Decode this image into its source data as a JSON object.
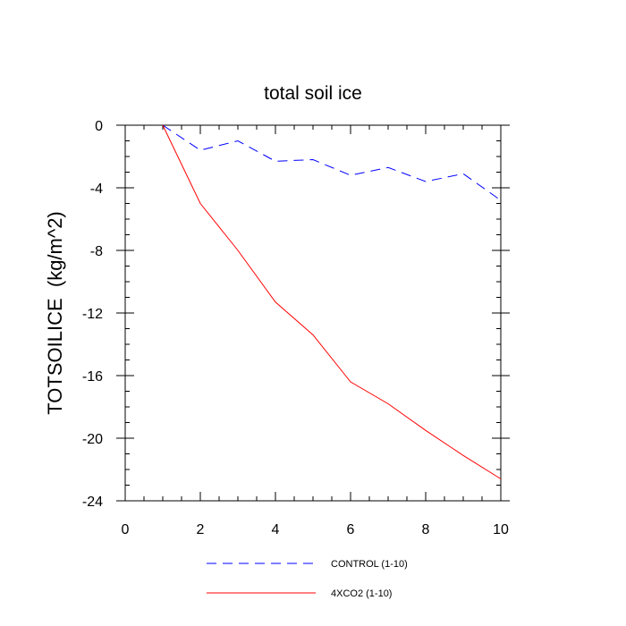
{
  "chart_data": {
    "type": "line",
    "title": "total soil ice",
    "xlabel": "",
    "ylabel": "TOTSOILICE  (kg/m^2)",
    "xlim": [
      0,
      10
    ],
    "ylim": [
      -24,
      0
    ],
    "xticks": [
      0,
      2,
      4,
      6,
      8,
      10
    ],
    "yticks": [
      0,
      -4,
      -8,
      -12,
      -16,
      -20,
      -24
    ],
    "xtick_labels": [
      "0",
      "2",
      "4",
      "6",
      "8",
      "10"
    ],
    "ytick_labels": [
      "0",
      "-4",
      "-8",
      "-12",
      "-16",
      "-20",
      "-24"
    ],
    "grid": false,
    "legend_position": "bottom",
    "series": [
      {
        "name": "CONTROL (1-10)",
        "color": "#0000ff",
        "style": "dashed",
        "x": [
          1,
          2,
          3,
          4,
          5,
          6,
          7,
          8,
          9,
          10
        ],
        "y": [
          0,
          -1.6,
          -1.0,
          -2.3,
          -2.2,
          -3.2,
          -2.7,
          -3.6,
          -3.1,
          -4.8
        ]
      },
      {
        "name": "4XCO2 (1-10)",
        "color": "#ff0000",
        "style": "solid",
        "x": [
          1,
          2,
          3,
          4,
          5,
          6,
          7,
          8,
          9,
          10
        ],
        "y": [
          0,
          -5.0,
          -8.0,
          -11.3,
          -13.4,
          -16.4,
          -17.8,
          -19.5,
          -21.1,
          -22.6
        ]
      }
    ]
  }
}
